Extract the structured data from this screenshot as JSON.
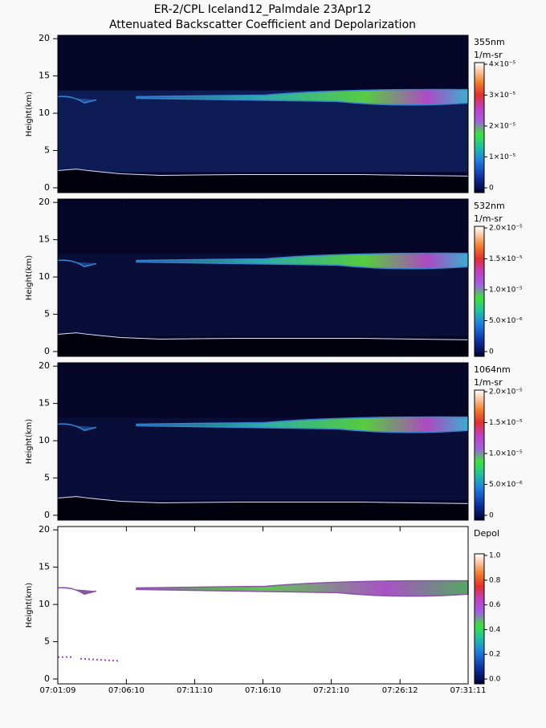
{
  "chart_data": [
    {
      "type": "heatmap",
      "title": "ER-2/CPL Iceland12_Palmdale 23Apr12",
      "subtitle": "Attenuated Backscatter Coefficient and Depolarization",
      "ylabel": "Height(km)",
      "ylim": [
        -0.65,
        20.45
      ],
      "yticks": [
        0,
        5,
        10,
        15,
        20
      ],
      "xlim": [
        "07:01:09",
        "07:31:11"
      ],
      "xticks": [
        "07:01:09",
        "07:06:10",
        "07:11:10",
        "07:16:10",
        "07:21:10",
        "07:26:12",
        "07:31:11"
      ],
      "colorbar_title": "355nm",
      "colorbar_units": "1/m-sr",
      "clim": [
        0,
        4e-05
      ],
      "cticks": [
        0,
        {
          "value": 1e-05,
          "label": "1×10⁻⁵"
        },
        {
          "value": 2e-05,
          "label": "2×10⁻⁵"
        },
        {
          "value": 3e-05,
          "label": "3×10⁻⁵"
        },
        {
          "value": 4e-05,
          "label": "4×10⁻⁵"
        }
      ]
    },
    {
      "type": "heatmap",
      "ylabel": "Height(km)",
      "ylim": [
        -0.65,
        20.45
      ],
      "yticks": [
        0,
        5,
        10,
        15,
        20
      ],
      "xlim": [
        "07:01:09",
        "07:31:11"
      ],
      "xticks": [
        "07:01:09",
        "07:06:10",
        "07:11:10",
        "07:16:10",
        "07:21:10",
        "07:26:12",
        "07:31:11"
      ],
      "colorbar_title": "532nm",
      "colorbar_units": "1/m-sr",
      "clim": [
        0,
        2e-05
      ],
      "cticks": [
        0,
        {
          "value": 5e-06,
          "label": "5.0×10⁻⁶"
        },
        {
          "value": 1e-05,
          "label": "1.0×10⁻⁵"
        },
        {
          "value": 1.5e-05,
          "label": "1.5×10⁻⁵"
        },
        {
          "value": 2e-05,
          "label": "2.0×10⁻⁵"
        }
      ]
    },
    {
      "type": "heatmap",
      "ylabel": "Height(km)",
      "ylim": [
        -0.65,
        20.45
      ],
      "yticks": [
        0,
        5,
        10,
        15,
        20
      ],
      "xlim": [
        "07:01:09",
        "07:31:11"
      ],
      "xticks": [
        "07:01:09",
        "07:06:10",
        "07:11:10",
        "07:16:10",
        "07:21:10",
        "07:26:12",
        "07:31:11"
      ],
      "colorbar_title": "1064nm",
      "colorbar_units": "1/m-sr",
      "clim": [
        0,
        2e-05
      ],
      "cticks": [
        0,
        {
          "value": 5e-06,
          "label": "5.0×10⁻⁶"
        },
        {
          "value": 1e-05,
          "label": "1.0×10⁻⁵"
        },
        {
          "value": 1.5e-05,
          "label": "1.5×10⁻⁵"
        },
        {
          "value": 2e-05,
          "label": "2.0×10⁻⁵"
        }
      ]
    },
    {
      "type": "heatmap",
      "ylabel": "Height(km)",
      "ylim": [
        -0.65,
        20.45
      ],
      "yticks": [
        0,
        5,
        10,
        15,
        20
      ],
      "xlim": [
        "07:01:09",
        "07:31:11"
      ],
      "xticks": [
        "07:01:09",
        "07:06:10",
        "07:11:10",
        "07:16:10",
        "07:21:10",
        "07:26:12",
        "07:31:11"
      ],
      "colorbar_title": "Depol",
      "clim": [
        0,
        1
      ],
      "cticks": [
        {
          "value": 0,
          "label": "0.0"
        },
        0.2,
        0.4,
        0.6,
        0.8,
        {
          "value": 1,
          "label": "1.0"
        }
      ],
      "xticklabels": true
    }
  ]
}
